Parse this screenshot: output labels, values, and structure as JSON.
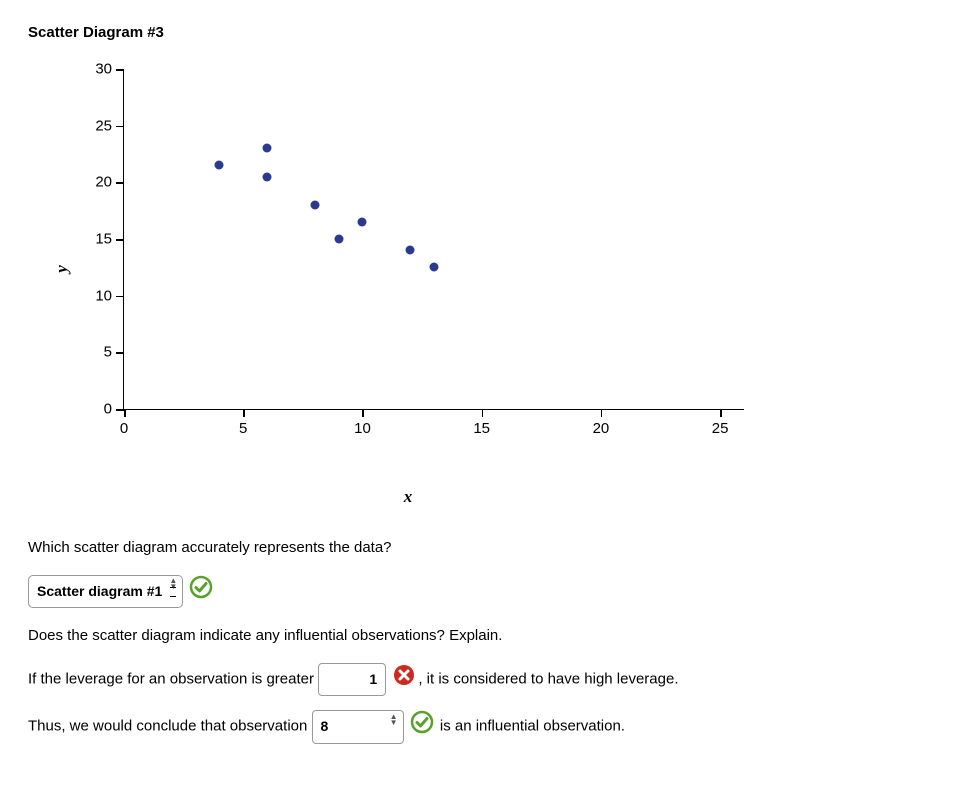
{
  "title": "Scatter Diagram #3",
  "chart": {
    "type": "scatter",
    "xlabel": "x",
    "ylabel": "y",
    "xlim": [
      0,
      26
    ],
    "ylim": [
      0,
      30
    ],
    "x_ticks": [
      0,
      5,
      10,
      15,
      20,
      25
    ],
    "y_ticks": [
      0,
      5,
      10,
      15,
      20,
      25,
      30
    ],
    "axis_color": "#000000",
    "background_color": "#ffffff",
    "tick_fontsize": 15,
    "label_fontsize": 17,
    "point_color": "#2b3a8f",
    "point_radius": 4.5,
    "points": [
      {
        "x": 4,
        "y": 21.5
      },
      {
        "x": 6,
        "y": 23
      },
      {
        "x": 6,
        "y": 20.5
      },
      {
        "x": 8,
        "y": 18
      },
      {
        "x": 9,
        "y": 15
      },
      {
        "x": 10,
        "y": 16.5
      },
      {
        "x": 12,
        "y": 14
      },
      {
        "x": 13,
        "y": 12.5
      }
    ]
  },
  "q1": {
    "text": "Which scatter diagram accurately represents the data?",
    "select_value": "Scatter diagram #1",
    "result": "correct"
  },
  "q2": {
    "text": "Does the scatter diagram indicate any influential observations? Explain."
  },
  "q3": {
    "before": "If the leverage for an observation is greater",
    "input_value": "1",
    "result": "incorrect",
    "after": ", it is considered to have high leverage."
  },
  "q4": {
    "before": "Thus, we would conclude that observation",
    "select_value": "8",
    "result": "correct",
    "after": "is an influential observation."
  },
  "icons": {
    "correct_color": "#5aa02c",
    "incorrect_color": "#cc2a1f"
  }
}
